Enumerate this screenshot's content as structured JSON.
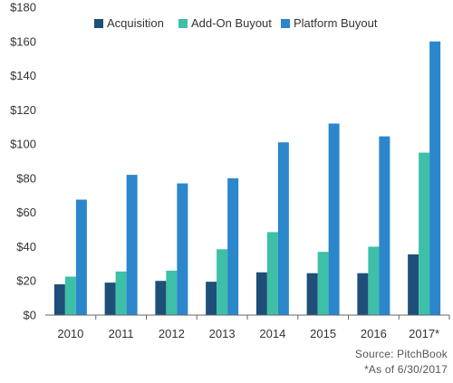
{
  "chart_data": {
    "type": "bar",
    "categories": [
      "2010",
      "2011",
      "2012",
      "2013",
      "2014",
      "2015",
      "2016",
      "2017*"
    ],
    "series": [
      {
        "name": "Acquisition",
        "color": "#1f4e79",
        "values": [
          18,
          19,
          20,
          19.5,
          25,
          24.5,
          24.5,
          35.5
        ]
      },
      {
        "name": "Add-On Buyout",
        "color": "#3dbfa8",
        "values": [
          22.5,
          25.5,
          26,
          38.5,
          48.5,
          37,
          40,
          95
        ]
      },
      {
        "name": "Platform Buyout",
        "color": "#2b86cc",
        "values": [
          67.5,
          82,
          77,
          80,
          101,
          112,
          104.5,
          160
        ]
      }
    ],
    "ylim": [
      0,
      180
    ],
    "yticks": [
      0,
      20,
      40,
      60,
      80,
      100,
      120,
      140,
      160,
      180
    ],
    "ytick_labels": [
      "$0",
      "$20",
      "$40",
      "$60",
      "$80",
      "$100",
      "$120",
      "$140",
      "$160",
      "$180"
    ],
    "legend_position": "top",
    "grid": false
  },
  "footnotes": {
    "source": "Source: PitchBook",
    "as_of": "*As of 6/30/2017"
  }
}
